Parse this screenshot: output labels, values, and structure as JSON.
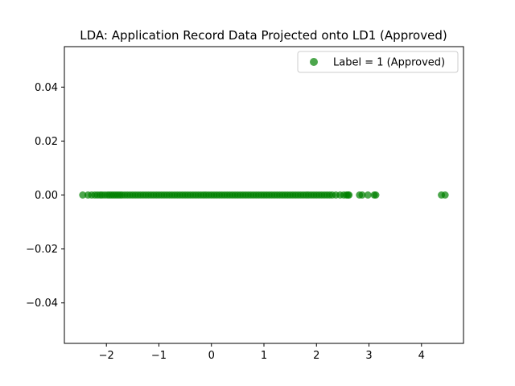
{
  "chart_data": {
    "type": "scatter",
    "title": "LDA: Application Record Data Projected onto LD1 (Approved)",
    "xlabel": "",
    "ylabel": "",
    "xlim": [
      -2.8,
      4.8
    ],
    "ylim": [
      -0.055,
      0.055
    ],
    "xticks": [
      -2,
      -1,
      0,
      1,
      2,
      3,
      4
    ],
    "xtick_labels": [
      "−2",
      "−1",
      "0",
      "1",
      "2",
      "3",
      "4"
    ],
    "yticks": [
      -0.04,
      -0.02,
      0.0,
      0.02,
      0.04
    ],
    "ytick_labels": [
      "−0.04",
      "−0.02",
      "0.00",
      "0.02",
      "0.04"
    ],
    "grid": false,
    "legend_position": "top-right",
    "series": [
      {
        "name": "Label = 1 (Approved)",
        "color": "#008000",
        "x": [
          -2.45,
          -2.35,
          -2.28,
          -2.22,
          -2.17,
          -2.12,
          -2.08,
          -2.03,
          -1.98,
          -1.94,
          -1.9,
          -1.86,
          -1.82,
          -1.78,
          -1.74,
          -1.7,
          -1.65,
          -1.6,
          -1.55,
          -1.5,
          -1.45,
          -1.4,
          -1.35,
          -1.3,
          -1.25,
          -1.2,
          -1.15,
          -1.1,
          -1.05,
          -1.0,
          -0.95,
          -0.9,
          -0.85,
          -0.8,
          -0.75,
          -0.7,
          -0.65,
          -0.6,
          -0.55,
          -0.5,
          -0.45,
          -0.4,
          -0.35,
          -0.3,
          -0.25,
          -0.2,
          -0.15,
          -0.1,
          -0.05,
          0.0,
          0.05,
          0.1,
          0.15,
          0.2,
          0.25,
          0.3,
          0.35,
          0.4,
          0.45,
          0.5,
          0.55,
          0.6,
          0.65,
          0.7,
          0.75,
          0.8,
          0.85,
          0.9,
          0.95,
          1.0,
          1.05,
          1.1,
          1.15,
          1.2,
          1.25,
          1.3,
          1.35,
          1.4,
          1.45,
          1.5,
          1.55,
          1.6,
          1.65,
          1.7,
          1.75,
          1.8,
          1.85,
          1.9,
          1.95,
          2.0,
          2.05,
          2.1,
          2.15,
          2.2,
          2.25,
          2.3,
          2.37,
          2.45,
          2.52,
          2.57,
          2.6,
          2.62,
          2.82,
          2.87,
          2.98,
          3.1,
          3.13,
          4.38,
          4.45
        ],
        "y": [
          0,
          0,
          0,
          0,
          0,
          0,
          0,
          0,
          0,
          0,
          0,
          0,
          0,
          0,
          0,
          0,
          0,
          0,
          0,
          0,
          0,
          0,
          0,
          0,
          0,
          0,
          0,
          0,
          0,
          0,
          0,
          0,
          0,
          0,
          0,
          0,
          0,
          0,
          0,
          0,
          0,
          0,
          0,
          0,
          0,
          0,
          0,
          0,
          0,
          0,
          0,
          0,
          0,
          0,
          0,
          0,
          0,
          0,
          0,
          0,
          0,
          0,
          0,
          0,
          0,
          0,
          0,
          0,
          0,
          0,
          0,
          0,
          0,
          0,
          0,
          0,
          0,
          0,
          0,
          0,
          0,
          0,
          0,
          0,
          0,
          0,
          0,
          0,
          0,
          0,
          0,
          0,
          0,
          0,
          0,
          0,
          0,
          0,
          0,
          0,
          0,
          0,
          0,
          0,
          0,
          0,
          0,
          0,
          0
        ]
      }
    ]
  }
}
